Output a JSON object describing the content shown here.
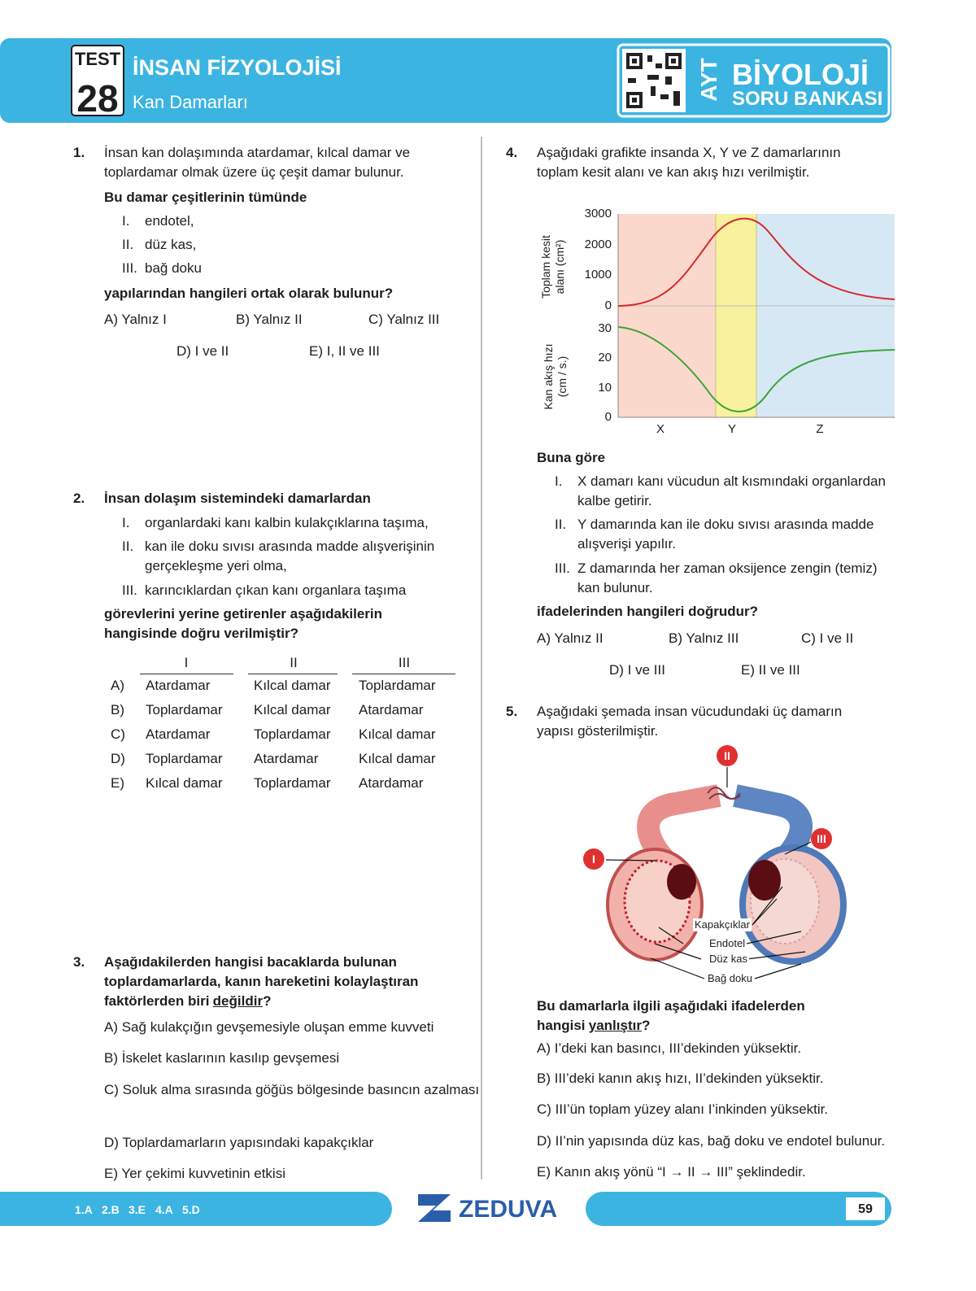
{
  "header": {
    "test_label": "TEST",
    "test_number": "28",
    "title": "İNSAN FİZYOLOJİSİ",
    "subtitle": "Kan Damarları",
    "brand_exam": "AYT",
    "brand_title": "BİYOLOJİ",
    "brand_subtitle": "SORU BANKASI"
  },
  "questions": [
    {
      "number": "1.",
      "text": "İnsan kan dolaşımında atardamar, kılcal damar ve toplardamar olmak üzere üç çeşit damar bulunur.",
      "lead": "Bu damar çeşitlerinin tümünde",
      "items": [
        {
          "numeral": "I.",
          "text": "endotel,"
        },
        {
          "numeral": "II.",
          "text": "düz kas,"
        },
        {
          "numeral": "III.",
          "text": "bağ doku"
        }
      ],
      "question": "yapılarından hangileri ortak olarak bulunur?",
      "options": [
        "A) Yalnız I",
        "B) Yalnız II",
        "C) Yalnız III",
        "D) I ve II",
        "E) I, II ve III"
      ]
    },
    {
      "number": "2.",
      "lead": "İnsan dolaşım sistemindeki damarlardan",
      "items": [
        {
          "numeral": "I.",
          "text": "organlardaki kanı kalbin kulakçıklarına taşıma,"
        },
        {
          "numeral": "II.",
          "text": "kan ile doku sıvısı arasında madde alışverişinin gerçekleşme yeri olma,"
        },
        {
          "numeral": "III.",
          "text": "karıncıklardan çıkan kanı organlara taşıma"
        }
      ],
      "question": "görevlerini yerine getirenler aşağıdakilerin hangisinde doğru verilmiştir?",
      "table": {
        "columns": [
          "I",
          "II",
          "III"
        ],
        "rows": [
          {
            "option": "A)",
            "cells": [
              "Atardamar",
              "Kılcal damar",
              "Toplardamar"
            ]
          },
          {
            "option": "B)",
            "cells": [
              "Toplardamar",
              "Kılcal damar",
              "Atardamar"
            ]
          },
          {
            "option": "C)",
            "cells": [
              "Atardamar",
              "Toplardamar",
              "Kılcal damar"
            ]
          },
          {
            "option": "D)",
            "cells": [
              "Toplardamar",
              "Atardamar",
              "Kılcal damar"
            ]
          },
          {
            "option": "E)",
            "cells": [
              "Kılcal damar",
              "Toplardamar",
              "Atardamar"
            ]
          }
        ]
      }
    },
    {
      "number": "3.",
      "question_parts": [
        "Aşağıdakilerden hangisi bacaklarda bulunan toplardamarlarda, kanın hareketini kolaylaştıran faktörlerden biri",
        "değildir",
        "?"
      ],
      "options": [
        "A) Sağ kulakçığın gevşemesiyle oluşan emme kuvveti",
        "B) İskelet kaslarının kasılıp gevşemesi",
        "C) Soluk alma sırasında göğüs bölgesinde basıncın azalması",
        "D) Toplardamarların yapısındaki kapakçıklar",
        "E) Yer çekimi kuvvetinin etkisi"
      ]
    },
    {
      "number": "4.",
      "text": "Aşağıdaki grafikte insanda X, Y ve Z damarlarının toplam kesit alanı ve kan akış hızı verilmiştir.",
      "chart": {
        "top_axis_label": "Toplam kesit alanı (cm²)",
        "top_ticks": [
          3000,
          2000,
          1000,
          0
        ],
        "bottom_axis_label": "Kan akış hızı (cm / s.)",
        "bottom_ticks": [
          30,
          20,
          10,
          0
        ],
        "regions": [
          "X",
          "Y",
          "Z"
        ]
      },
      "lead": "Buna göre",
      "items": [
        {
          "numeral": "I.",
          "text": "X damarı kanı vücudun alt kısmındaki organlardan kalbe getirir."
        },
        {
          "numeral": "II.",
          "text": "Y damarında kan ile doku sıvısı arasında madde alışverişi yapılır."
        },
        {
          "numeral": "III.",
          "text": "Z damarında her zaman oksijence zengin (temiz) kan bulunur."
        }
      ],
      "question": "ifadelerinden hangileri doğrudur?",
      "options": [
        "A) Yalnız II",
        "B) Yalnız III",
        "C) I ve II",
        "D) I ve III",
        "E) II ve III"
      ]
    },
    {
      "number": "5.",
      "text": "Aşağıdaki şemada insan vücudundaki üç damarın yapısı gösterilmiştir.",
      "diagram": {
        "vessel_labels": [
          "I",
          "II",
          "III"
        ],
        "parts": [
          "Kapakçıklar",
          "Endotel",
          "Düz kas",
          "Bağ doku"
        ]
      },
      "question_parts": [
        "Bu damarlarla ilgili aşağıdaki ifadelerden hangisi",
        "yanlıştır",
        "?"
      ],
      "options": [
        "A) I’deki kan basıncı, III’dekinden yüksektir.",
        "B) III’deki kanın akış hızı, II’dekinden yüksektir.",
        "C) III’ün toplam yüzey alanı I’inkinden yüksektir.",
        "D) II’nin yapısında düz kas, bağ doku ve endotel bulunur.",
        "E) Kanın akış yönü “I → II → III” şeklindedir."
      ]
    }
  ],
  "footer": {
    "answers": [
      "1.A",
      "2.B",
      "3.E",
      "4.A",
      "5.D"
    ],
    "brand": "ZEDUVA",
    "page": "59"
  }
}
